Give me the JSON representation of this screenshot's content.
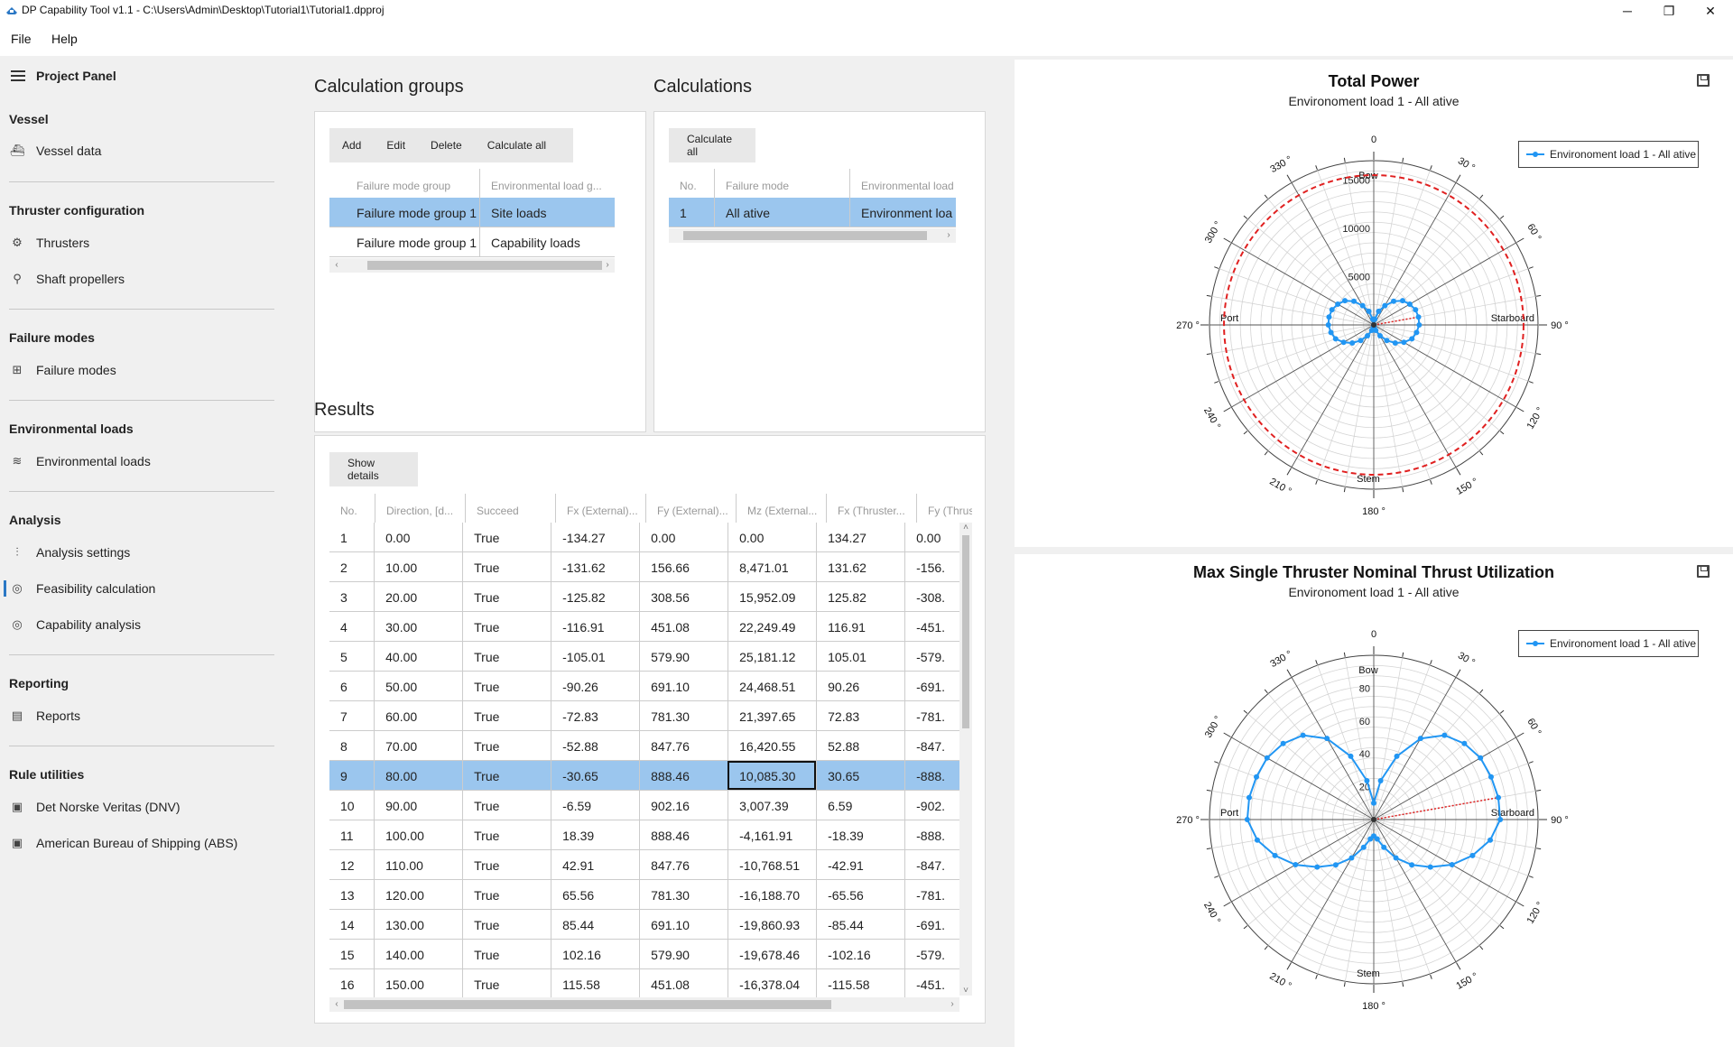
{
  "window": {
    "title": "DP Capability Tool v1.1 - C:\\Users\\Admin\\Desktop\\Tutorial1\\Tutorial1.dpproj",
    "minimize": "─",
    "restore": "❐",
    "close": "✕"
  },
  "menu": {
    "file": "File",
    "help": "Help"
  },
  "sidebar": {
    "header": "Project Panel",
    "sections": [
      {
        "title": "Vessel",
        "items": [
          {
            "label": "Vessel data",
            "icon": "ship-icon"
          }
        ]
      },
      {
        "title": "Thruster configuration",
        "items": [
          {
            "label": "Thrusters",
            "icon": "thruster-icon"
          },
          {
            "label": "Shaft propellers",
            "icon": "propeller-icon"
          }
        ]
      },
      {
        "title": "Failure modes",
        "items": [
          {
            "label": "Failure modes",
            "icon": "failure-modes-icon"
          }
        ]
      },
      {
        "title": "Environmental loads",
        "items": [
          {
            "label": "Environmental loads",
            "icon": "waves-icon"
          }
        ]
      },
      {
        "title": "Analysis",
        "items": [
          {
            "label": "Analysis settings",
            "icon": "sliders-icon"
          },
          {
            "label": "Feasibility calculation",
            "icon": "target-icon",
            "active": true
          },
          {
            "label": "Capability analysis",
            "icon": "target-icon"
          }
        ]
      },
      {
        "title": "Reporting",
        "items": [
          {
            "label": "Reports",
            "icon": "report-icon"
          }
        ]
      },
      {
        "title": "Rule utilities",
        "items": [
          {
            "label": "Det Norske Veritas (DNV)",
            "icon": "book-icon"
          },
          {
            "label": "American Bureau of Shipping (ABS)",
            "icon": "book-icon"
          }
        ]
      }
    ]
  },
  "calc_groups": {
    "title": "Calculation groups",
    "buttons": [
      "Add",
      "Edit",
      "Delete",
      "Calculate all"
    ],
    "columns": [
      "Failure mode group",
      "Environmental load g..."
    ],
    "rows": [
      [
        "Failure mode group 1",
        "Site loads"
      ],
      [
        "Failure mode group 1",
        "Capability loads"
      ]
    ]
  },
  "calculations": {
    "title": "Calculations",
    "buttons": [
      "Calculate all"
    ],
    "columns": [
      "No.",
      "Failure mode",
      "Environmental load"
    ],
    "rows": [
      [
        "1",
        "All ative",
        "Environment loa"
      ]
    ]
  },
  "results": {
    "title": "Results",
    "show_details": "Show details",
    "columns": [
      "No.",
      "Direction, [d...",
      "Succeed",
      "Fx (External)...",
      "Fy (External)...",
      "Mz (External...",
      "Fx (Thruster...",
      "Fy (Thrus"
    ],
    "selected_row": 8,
    "rows": [
      [
        "1",
        "0.00",
        "True",
        "-134.27",
        "0.00",
        "0.00",
        "134.27",
        "0.00"
      ],
      [
        "2",
        "10.00",
        "True",
        "-131.62",
        "156.66",
        "8,471.01",
        "131.62",
        "-156."
      ],
      [
        "3",
        "20.00",
        "True",
        "-125.82",
        "308.56",
        "15,952.09",
        "125.82",
        "-308."
      ],
      [
        "4",
        "30.00",
        "True",
        "-116.91",
        "451.08",
        "22,249.49",
        "116.91",
        "-451."
      ],
      [
        "5",
        "40.00",
        "True",
        "-105.01",
        "579.90",
        "25,181.12",
        "105.01",
        "-579."
      ],
      [
        "6",
        "50.00",
        "True",
        "-90.26",
        "691.10",
        "24,468.51",
        "90.26",
        "-691."
      ],
      [
        "7",
        "60.00",
        "True",
        "-72.83",
        "781.30",
        "21,397.65",
        "72.83",
        "-781."
      ],
      [
        "8",
        "70.00",
        "True",
        "-52.88",
        "847.76",
        "16,420.55",
        "52.88",
        "-847."
      ],
      [
        "9",
        "80.00",
        "True",
        "-30.65",
        "888.46",
        "10,085.30",
        "30.65",
        "-888."
      ],
      [
        "10",
        "90.00",
        "True",
        "-6.59",
        "902.16",
        "3,007.39",
        "6.59",
        "-902."
      ],
      [
        "11",
        "100.00",
        "True",
        "18.39",
        "888.46",
        "-4,161.91",
        "-18.39",
        "-888."
      ],
      [
        "12",
        "110.00",
        "True",
        "42.91",
        "847.76",
        "-10,768.51",
        "-42.91",
        "-847."
      ],
      [
        "13",
        "120.00",
        "True",
        "65.56",
        "781.30",
        "-16,188.70",
        "-65.56",
        "-781."
      ],
      [
        "14",
        "130.00",
        "True",
        "85.44",
        "691.10",
        "-19,860.93",
        "-85.44",
        "-691."
      ],
      [
        "15",
        "140.00",
        "True",
        "102.16",
        "579.90",
        "-19,678.46",
        "-102.16",
        "-579."
      ],
      [
        "16",
        "150.00",
        "True",
        "115.58",
        "451.08",
        "-16,378.04",
        "-115.58",
        "-451."
      ]
    ]
  },
  "chart_data": [
    {
      "type": "polar-line",
      "title": "Total Power",
      "subtitle": "Environoment load 1 - All ative",
      "radial_ticks": [
        5000,
        10000,
        15000
      ],
      "rmax": 17000,
      "labels": {
        "top": "Bow",
        "bottom": "Stem",
        "left": "Port",
        "right": "Starboard"
      },
      "angle_labels": [
        "0",
        "30 °",
        "60 °",
        "90 °",
        "120 °",
        "150 °",
        "180 °",
        "210 °",
        "240 °",
        "270 °",
        "300 °",
        "330 °"
      ],
      "legend": "Environoment load 1 - All ative",
      "series_color": "#2196f3",
      "limit_color": "#e02020",
      "limit_value": 15500,
      "directions": [
        0,
        10,
        20,
        30,
        40,
        50,
        60,
        70,
        80,
        90,
        100,
        110,
        120,
        130,
        140,
        150,
        160,
        170,
        180,
        190,
        200,
        210,
        220,
        230,
        240,
        250,
        260,
        270,
        280,
        290,
        300,
        310,
        320,
        330,
        340,
        350
      ],
      "values": [
        0,
        600,
        1500,
        2300,
        3200,
        3900,
        4300,
        4600,
        4700,
        4700,
        4500,
        4200,
        3600,
        2900,
        2100,
        1300,
        600,
        200,
        0,
        200,
        600,
        1300,
        2100,
        2900,
        3600,
        4200,
        4500,
        4700,
        4700,
        4600,
        4300,
        3900,
        3200,
        2300,
        1500,
        600
      ],
      "marker_direction": 80,
      "marker_value": 4700
    },
    {
      "type": "polar-line",
      "title": "Max Single Thruster Nominal Thrust Utilization",
      "subtitle": "Environoment load 1 - All ative",
      "radial_ticks": [
        20,
        40,
        60,
        80
      ],
      "rmax": 100,
      "labels": {
        "top": "Bow",
        "bottom": "Stem",
        "left": "Port",
        "right": "Starboard"
      },
      "angle_labels": [
        "0",
        "30 °",
        "60 °",
        "90 °",
        "120 °",
        "150 °",
        "180 °",
        "210 °",
        "240 °",
        "270 °",
        "300 °",
        "330 °"
      ],
      "legend": "Environoment load 1 - All ative",
      "series_color": "#2196f3",
      "directions": [
        0,
        10,
        20,
        30,
        40,
        50,
        60,
        70,
        80,
        90,
        100,
        110,
        120,
        130,
        140,
        150,
        160,
        170,
        180,
        190,
        200,
        210,
        220,
        230,
        240,
        250,
        260,
        270,
        280,
        290,
        300,
        310,
        320,
        330,
        340,
        350
      ],
      "values": [
        10,
        24,
        41,
        57,
        67,
        72,
        75,
        76,
        77,
        77,
        72,
        64,
        55,
        45,
        36,
        27,
        18,
        12,
        10,
        12,
        18,
        27,
        36,
        45,
        55,
        64,
        72,
        77,
        77,
        76,
        75,
        72,
        67,
        57,
        41,
        24
      ],
      "marker_direction": 80,
      "marker_value": 77
    }
  ]
}
